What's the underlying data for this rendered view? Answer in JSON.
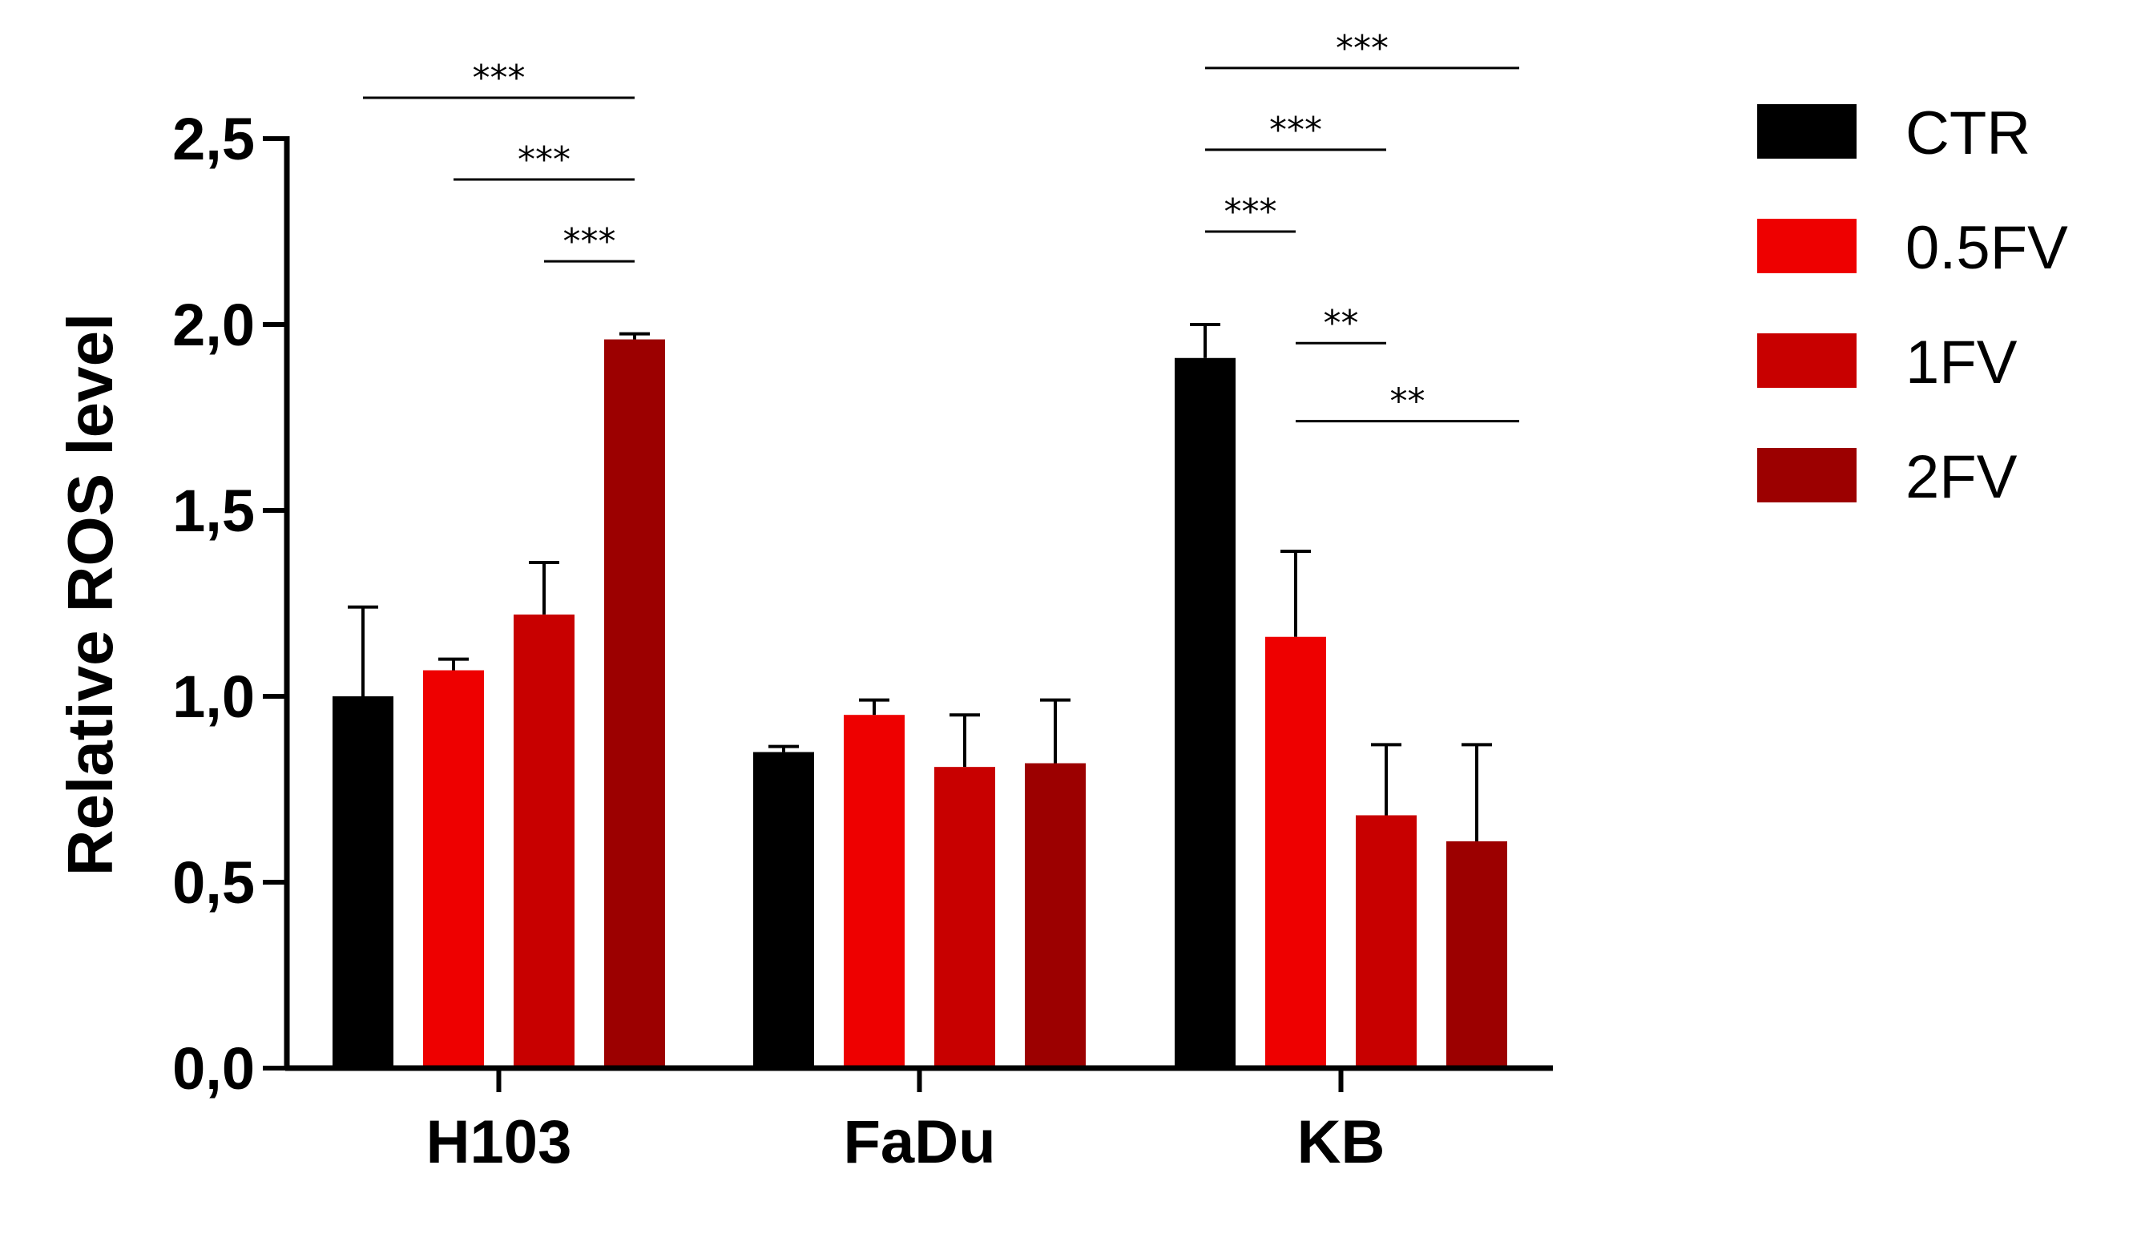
{
  "chart_data": {
    "type": "bar",
    "title": "",
    "xlabel": "",
    "ylabel": "Relative ROS level",
    "ylim": [
      0,
      2.5
    ],
    "yticks": [
      {
        "value": 0.0,
        "label": "0,0"
      },
      {
        "value": 0.5,
        "label": "0,5"
      },
      {
        "value": 1.0,
        "label": "1,0"
      },
      {
        "value": 1.5,
        "label": "1,5"
      },
      {
        "value": 2.0,
        "label": "2,0"
      },
      {
        "value": 2.5,
        "label": "2,5"
      }
    ],
    "categories": [
      "H103",
      "FaDu",
      "KB"
    ],
    "series": [
      {
        "name": "CTR",
        "color": "#000000",
        "values": [
          1.0,
          0.85,
          1.91
        ],
        "errors": [
          0.24,
          0.015,
          0.09
        ]
      },
      {
        "name": "0.5FV",
        "color": "#ee0000",
        "values": [
          1.07,
          0.95,
          1.16
        ],
        "errors": [
          0.03,
          0.04,
          0.23
        ]
      },
      {
        "name": "1FV",
        "color": "#c80000",
        "values": [
          1.22,
          0.81,
          0.68
        ],
        "errors": [
          0.14,
          0.14,
          0.19
        ]
      },
      {
        "name": "2FV",
        "color": "#9c0000",
        "values": [
          1.96,
          0.82,
          0.61
        ],
        "errors": [
          0.015,
          0.17,
          0.26
        ]
      }
    ],
    "grid": false,
    "legend_position": "top-right",
    "significance": [
      {
        "category": 0,
        "from_series": 0,
        "to_series": 3,
        "label": "***",
        "level": 2.61
      },
      {
        "category": 0,
        "from_series": 1,
        "to_series": 3,
        "label": "***",
        "level": 2.39
      },
      {
        "category": 0,
        "from_series": 2,
        "to_series": 3,
        "label": "***",
        "level": 2.17
      },
      {
        "category": 2,
        "from_series": 0,
        "to_series": 3,
        "label": "***",
        "level": 2.69
      },
      {
        "category": 2,
        "from_series": 0,
        "to_series": 2,
        "label": "***",
        "level": 2.47
      },
      {
        "category": 2,
        "from_series": 0,
        "to_series": 1,
        "label": "***",
        "level": 2.25
      },
      {
        "category": 2,
        "from_series": 1,
        "to_series": 2,
        "label": "**",
        "level": 1.95
      },
      {
        "category": 2,
        "from_series": 1,
        "to_series": 3,
        "label": "**",
        "level": 1.74
      }
    ]
  }
}
